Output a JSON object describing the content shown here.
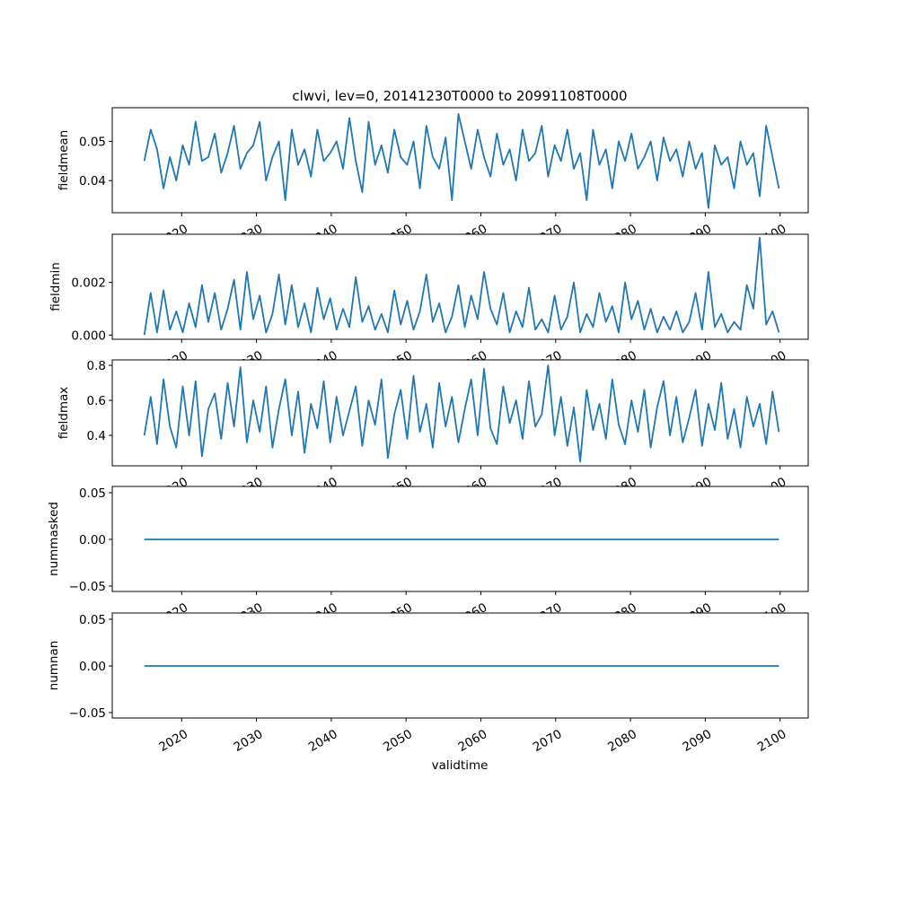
{
  "chart_data": {
    "type": "line",
    "title": "clwvi, lev=0, 20141230T0000 to 20991108T0000",
    "xlabel": "validtime",
    "xlim": [
      2010.72,
      2103.76
    ],
    "x_ticks": [
      2020,
      2030,
      2040,
      2050,
      2060,
      2070,
      2080,
      2090,
      2100
    ],
    "x_start": 2015.0,
    "x_end": 2099.85,
    "line_color": "#1f77b4",
    "panels": [
      {
        "ylabel": "fieldmean",
        "ylim": [
          0.0318,
          0.0586
        ],
        "y_ticks": [
          0.04,
          0.05
        ],
        "y_tick_labels": [
          "0.04",
          "0.05"
        ],
        "values": [
          0.045,
          0.053,
          0.048,
          0.038,
          0.046,
          0.04,
          0.049,
          0.044,
          0.055,
          0.045,
          0.046,
          0.052,
          0.042,
          0.047,
          0.054,
          0.043,
          0.047,
          0.049,
          0.055,
          0.04,
          0.046,
          0.05,
          0.035,
          0.053,
          0.044,
          0.048,
          0.041,
          0.053,
          0.045,
          0.047,
          0.05,
          0.043,
          0.056,
          0.045,
          0.037,
          0.055,
          0.044,
          0.049,
          0.042,
          0.053,
          0.046,
          0.044,
          0.05,
          0.038,
          0.054,
          0.046,
          0.043,
          0.051,
          0.035,
          0.057,
          0.05,
          0.043,
          0.053,
          0.046,
          0.041,
          0.052,
          0.044,
          0.048,
          0.04,
          0.053,
          0.045,
          0.047,
          0.054,
          0.041,
          0.049,
          0.045,
          0.053,
          0.043,
          0.047,
          0.035,
          0.053,
          0.044,
          0.048,
          0.038,
          0.05,
          0.045,
          0.052,
          0.043,
          0.046,
          0.05,
          0.04,
          0.051,
          0.045,
          0.048,
          0.041,
          0.05,
          0.043,
          0.047,
          0.033,
          0.049,
          0.044,
          0.046,
          0.038,
          0.05,
          0.044,
          0.047,
          0.036,
          0.054,
          0.046,
          0.038
        ]
      },
      {
        "ylabel": "fieldmin",
        "ylim": [
          -0.00016,
          0.00383
        ],
        "y_ticks": [
          0.0,
          0.002
        ],
        "y_tick_labels": [
          "0.000",
          "0.002"
        ],
        "values": [
          0.0,
          0.0016,
          0.0001,
          0.0017,
          0.0002,
          0.0009,
          0.0001,
          0.0012,
          0.0003,
          0.0019,
          0.0005,
          0.0016,
          0.0002,
          0.001,
          0.0021,
          0.0002,
          0.0024,
          0.0006,
          0.0015,
          0.0001,
          0.0008,
          0.0023,
          0.0004,
          0.0019,
          0.0003,
          0.0012,
          0.0001,
          0.0018,
          0.0006,
          0.0014,
          0.0002,
          0.001,
          0.0003,
          0.0022,
          0.0005,
          0.0011,
          0.0002,
          0.0008,
          0.0001,
          0.0017,
          0.0004,
          0.0013,
          0.0002,
          0.0009,
          0.0023,
          0.0005,
          0.0012,
          0.0001,
          0.0007,
          0.0019,
          0.0003,
          0.0015,
          0.0006,
          0.0024,
          0.001,
          0.0004,
          0.0016,
          0.0001,
          0.0009,
          0.0003,
          0.0018,
          0.0002,
          0.0006,
          0.0001,
          0.0015,
          0.0002,
          0.0007,
          0.002,
          0.0001,
          0.0008,
          0.0003,
          0.0016,
          0.0005,
          0.0011,
          0.0001,
          0.002,
          0.0006,
          0.0013,
          0.0002,
          0.001,
          0.0001,
          0.0007,
          0.0002,
          0.0009,
          0.0001,
          0.0005,
          0.0016,
          0.0002,
          0.0024,
          0.0003,
          0.0008,
          0.0001,
          0.0005,
          0.0002,
          0.0019,
          0.001,
          0.0037,
          0.0004,
          0.0009,
          0.0001
        ]
      },
      {
        "ylabel": "fieldmax",
        "ylim": [
          0.226,
          0.831
        ],
        "y_ticks": [
          0.4,
          0.6,
          0.8
        ],
        "y_tick_labels": [
          "0.4",
          "0.6",
          "0.8"
        ],
        "values": [
          0.4,
          0.62,
          0.35,
          0.72,
          0.45,
          0.33,
          0.68,
          0.4,
          0.71,
          0.28,
          0.55,
          0.64,
          0.38,
          0.7,
          0.45,
          0.79,
          0.36,
          0.6,
          0.42,
          0.68,
          0.33,
          0.55,
          0.72,
          0.4,
          0.65,
          0.3,
          0.58,
          0.44,
          0.71,
          0.36,
          0.62,
          0.4,
          0.54,
          0.68,
          0.34,
          0.6,
          0.46,
          0.72,
          0.27,
          0.52,
          0.66,
          0.38,
          0.74,
          0.42,
          0.58,
          0.33,
          0.7,
          0.45,
          0.62,
          0.36,
          0.55,
          0.72,
          0.4,
          0.78,
          0.44,
          0.35,
          0.68,
          0.47,
          0.6,
          0.38,
          0.71,
          0.45,
          0.52,
          0.8,
          0.4,
          0.62,
          0.34,
          0.56,
          0.25,
          0.66,
          0.43,
          0.58,
          0.38,
          0.72,
          0.46,
          0.35,
          0.6,
          0.42,
          0.66,
          0.33,
          0.56,
          0.71,
          0.4,
          0.62,
          0.36,
          0.5,
          0.66,
          0.34,
          0.58,
          0.43,
          0.7,
          0.38,
          0.55,
          0.33,
          0.62,
          0.45,
          0.58,
          0.35,
          0.65,
          0.42
        ]
      },
      {
        "ylabel": "nummasked",
        "ylim": [
          -0.0558,
          0.0567
        ],
        "y_ticks": [
          -0.05,
          0.0,
          0.05
        ],
        "y_tick_labels": [
          "−0.05",
          "0.00",
          "0.05"
        ],
        "values": [
          0,
          0
        ]
      },
      {
        "ylabel": "numnan",
        "ylim": [
          -0.0558,
          0.0567
        ],
        "y_ticks": [
          -0.05,
          0.0,
          0.05
        ],
        "y_tick_labels": [
          "−0.05",
          "0.00",
          "0.05"
        ],
        "values": [
          0,
          0
        ]
      }
    ]
  }
}
